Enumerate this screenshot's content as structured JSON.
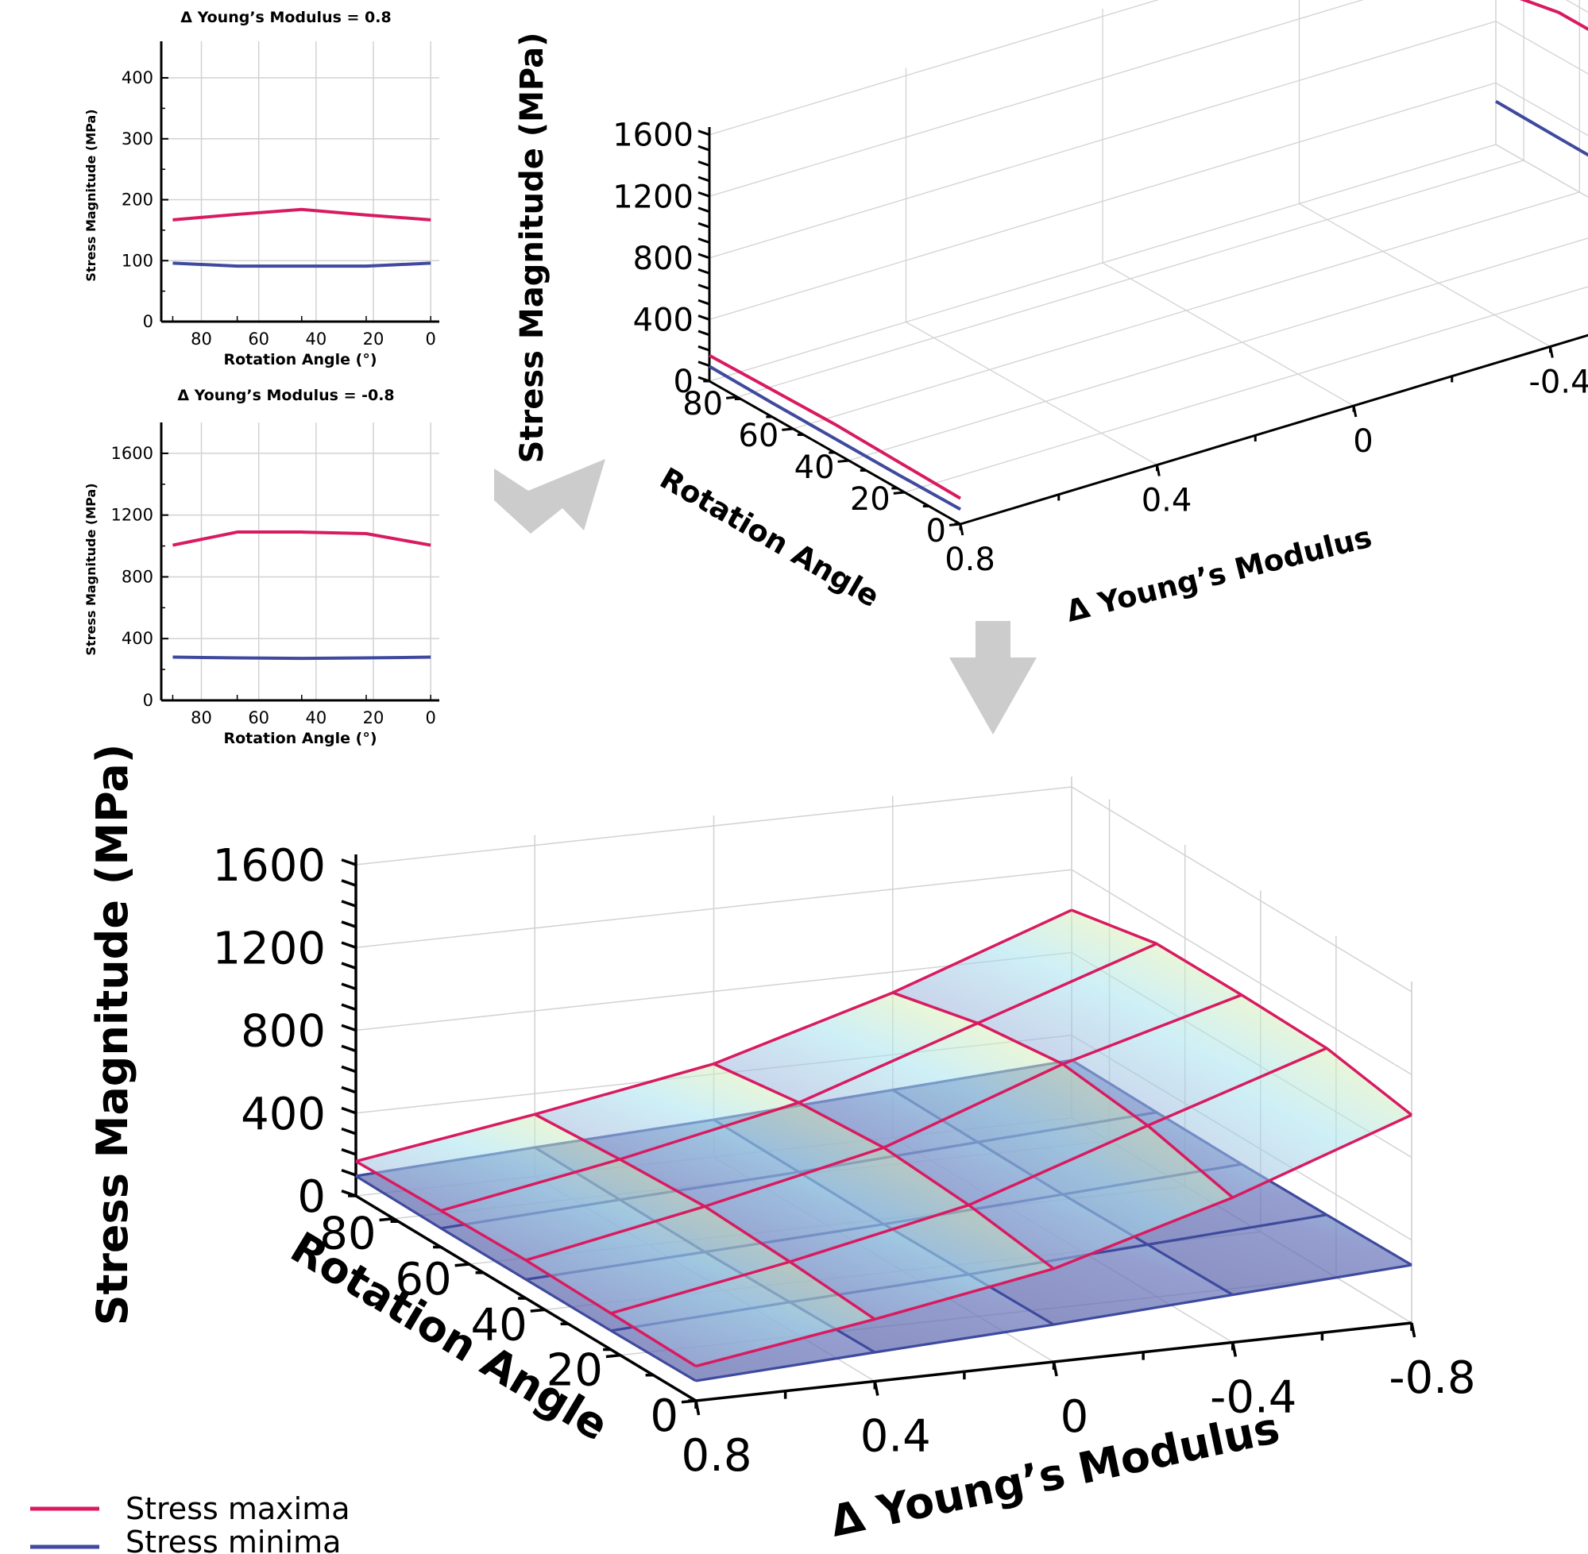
{
  "colors": {
    "maxima": "#d81b60",
    "minima": "#3f4a9e",
    "grid": "#d2d2d2",
    "arrow": "#cccccc"
  },
  "legend": {
    "maxima_label": "Stress maxima",
    "minima_label": "Stress minima"
  },
  "chart_data": [
    {
      "type": "line",
      "title": "Δ Young’s Modulus = 0.8",
      "xlabel": "Rotation Angle (°)",
      "ylabel": "Stress Magnitude (MPa)",
      "xlim": [
        94,
        -3
      ],
      "ylim": [
        0,
        460
      ],
      "x_ticks": [
        80,
        60,
        40,
        20,
        0
      ],
      "y_ticks": [
        0,
        100,
        200,
        300,
        400
      ],
      "x": [
        90,
        67.5,
        45,
        22.5,
        0
      ],
      "series": [
        {
          "name": "Stress maxima",
          "values": [
            167,
            176,
            184,
            175,
            167
          ]
        },
        {
          "name": "Stress minima",
          "values": [
            96,
            91,
            91,
            91,
            96
          ]
        }
      ]
    },
    {
      "type": "line",
      "title": "Δ Young’s Modulus = -0.8",
      "xlabel": "Rotation Angle (°)",
      "ylabel": "Stress Magnitude (MPa)",
      "xlim": [
        94,
        -3
      ],
      "ylim": [
        0,
        1800
      ],
      "x_ticks": [
        80,
        60,
        40,
        20,
        0
      ],
      "y_ticks": [
        0,
        400,
        800,
        1200,
        1600
      ],
      "x": [
        90,
        67.5,
        45,
        22.5,
        0
      ],
      "series": [
        {
          "name": "Stress maxima",
          "values": [
            1005,
            1090,
            1090,
            1080,
            1005
          ]
        },
        {
          "name": "Stress minima",
          "values": [
            280,
            275,
            272,
            275,
            280
          ]
        }
      ]
    },
    {
      "type": "line",
      "title": "",
      "xlabel": "Rotation Angle",
      "ylabel": "Stress Magnitude (MPa)",
      "zlabel": "Δ Young’s Modulus",
      "angle_ticks": [
        80,
        60,
        40,
        20,
        0
      ],
      "modulus_ticks": [
        0.8,
        0.4,
        0,
        -0.4,
        -0.8
      ],
      "stress_ticks": [
        0,
        400,
        800,
        1200,
        1600
      ],
      "stress_range": [
        0,
        1650
      ],
      "series": [
        {
          "name": "Stress maxima",
          "modulus": 0.8,
          "angle": [
            90,
            67.5,
            45,
            22.5,
            0
          ],
          "values": [
            167,
            176,
            184,
            175,
            167
          ]
        },
        {
          "name": "Stress minima",
          "modulus": 0.8,
          "angle": [
            90,
            67.5,
            45,
            22.5,
            0
          ],
          "values": [
            96,
            91,
            91,
            91,
            96
          ]
        },
        {
          "name": "Stress maxima",
          "modulus": -0.8,
          "angle": [
            90,
            67.5,
            45,
            22.5,
            0
          ],
          "values": [
            1005,
            1090,
            1090,
            1080,
            1005
          ]
        },
        {
          "name": "Stress minima",
          "modulus": -0.8,
          "angle": [
            90,
            67.5,
            45,
            22.5,
            0
          ],
          "values": [
            280,
            275,
            272,
            275,
            280
          ]
        }
      ]
    },
    {
      "type": "area",
      "title": "",
      "xlabel": "Rotation Angle",
      "ylabel": "Stress Magnitude (MPa)",
      "zlabel": "Δ Young’s Modulus",
      "angle_ticks": [
        80,
        60,
        40,
        20,
        0
      ],
      "modulus_ticks": [
        0.8,
        0.4,
        0,
        -0.4,
        -0.8
      ],
      "stress_ticks": [
        0,
        400,
        800,
        1200,
        1600
      ],
      "stress_range": [
        0,
        1650
      ],
      "angles": [
        90,
        67.5,
        45,
        22.5,
        0
      ],
      "modulus": [
        0.8,
        0.4,
        0,
        -0.4,
        -0.8
      ],
      "series": [
        {
          "name": "Stress maxima",
          "grid": [
            [
              167,
              176,
              184,
              175,
              167
            ],
            [
              300,
              330,
              350,
              330,
              300
            ],
            [
              450,
              510,
              540,
              510,
              450
            ],
            [
              700,
              800,
              850,
              800,
              700
            ],
            [
              1005,
              1090,
              1090,
              1080,
              1005
            ]
          ]
        },
        {
          "name": "Stress minima",
          "grid": [
            [
              96,
              91,
              91,
              91,
              96
            ],
            [
              140,
              135,
              130,
              135,
              140
            ],
            [
              180,
              175,
              170,
              175,
              180
            ],
            [
              230,
              225,
              220,
              225,
              230
            ],
            [
              280,
              275,
              272,
              275,
              280
            ]
          ]
        }
      ]
    }
  ]
}
